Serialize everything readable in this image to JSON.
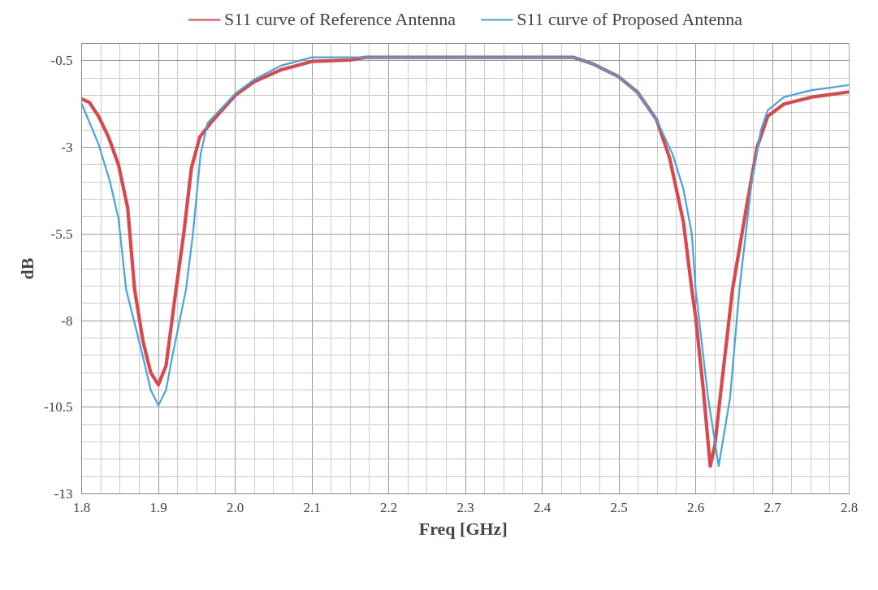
{
  "chart_data": {
    "type": "line",
    "xlabel": "Freq  [GHz]",
    "ylabel": "dB",
    "xlim": [
      1.8,
      2.8
    ],
    "ylim": [
      -13,
      0
    ],
    "xticks": [
      1.8,
      1.9,
      {
        "value": 2.0,
        "label": "2.0"
      },
      2.1,
      2.2,
      2.3,
      2.4,
      2.5,
      2.6,
      2.7,
      2.8
    ],
    "yticks": [
      -0.5,
      -3,
      -5.5,
      -8,
      -10.5,
      -13
    ],
    "grid": true,
    "legend": "top",
    "marker": "none",
    "line_style": "solid",
    "series": [
      {
        "name": "S11 curve of Reference Antenna",
        "color": "#d9484c",
        "x": [
          1.8,
          1.81,
          1.822,
          1.835,
          1.848,
          1.86,
          1.869,
          1.88,
          1.89,
          1.9,
          1.91,
          1.923,
          1.933,
          1.943,
          1.954,
          1.968,
          2.0,
          2.025,
          2.06,
          2.1,
          2.15,
          2.17,
          2.3,
          2.44,
          2.467,
          2.499,
          2.524,
          2.549,
          2.566,
          2.584,
          2.595,
          2.6,
          2.61,
          2.619,
          2.625,
          2.632,
          2.648,
          2.666,
          2.68,
          2.694,
          2.715,
          2.751,
          2.8
        ],
        "values": [
          -1.6,
          -1.7,
          -2.1,
          -2.7,
          -3.5,
          -4.75,
          -7.1,
          -8.6,
          -9.5,
          -9.85,
          -9.3,
          -7.1,
          -5.5,
          -3.6,
          -2.7,
          -2.3,
          -1.5,
          -1.1,
          -0.76,
          -0.52,
          -0.48,
          -0.4,
          -0.4,
          -0.4,
          -0.6,
          -0.95,
          -1.4,
          -2.2,
          -3.3,
          -5.15,
          -7.1,
          -7.9,
          -10.0,
          -12.2,
          -11.6,
          -10.2,
          -7.1,
          -4.75,
          -3.0,
          -2.1,
          -1.75,
          -1.55,
          -1.4
        ]
      },
      {
        "name": "S11 curve of Proposed Antenna",
        "color": "#4aa3df",
        "x": [
          1.8,
          1.822,
          1.837,
          1.848,
          1.858,
          1.88,
          1.89,
          1.9,
          1.91,
          1.918,
          1.936,
          1.945,
          1.955,
          1.964,
          2.0,
          2.025,
          2.06,
          2.1,
          2.3,
          2.44,
          2.467,
          2.499,
          2.524,
          2.549,
          2.57,
          2.584,
          2.595,
          2.6,
          2.616,
          2.63,
          2.645,
          2.657,
          2.673,
          2.685,
          2.694,
          2.715,
          2.751,
          2.8
        ],
        "values": [
          -1.74,
          -2.9,
          -4.0,
          -5.05,
          -7.1,
          -9.05,
          -10.0,
          -10.45,
          -10.0,
          -9.05,
          -7.1,
          -5.5,
          -3.2,
          -2.3,
          -1.45,
          -1.04,
          -0.64,
          -0.4,
          -0.4,
          -0.4,
          -0.6,
          -0.95,
          -1.4,
          -2.2,
          -3.2,
          -4.2,
          -5.5,
          -7.1,
          -10.2,
          -12.2,
          -10.2,
          -7.1,
          -4.0,
          -2.5,
          -1.93,
          -1.55,
          -1.35,
          -1.2
        ]
      }
    ]
  }
}
